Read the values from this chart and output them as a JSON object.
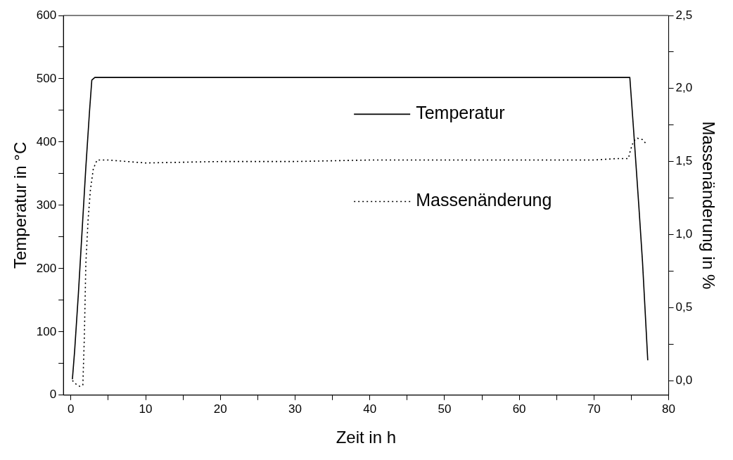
{
  "chart_data": {
    "type": "line",
    "xlabel": "Zeit in h",
    "ylabel": "Temperatur in °C",
    "y2label": "Massenänderung in %",
    "xlim": [
      -1,
      80
    ],
    "xticks": [
      0,
      {
        "value": 5,
        "label": null
      },
      10,
      {
        "value": 15,
        "label": null
      },
      20,
      {
        "value": 25,
        "label": null
      },
      30,
      {
        "value": 35,
        "label": null
      },
      40,
      {
        "value": 45,
        "label": null
      },
      50,
      {
        "value": 55,
        "label": null
      },
      60,
      {
        "value": 65,
        "label": null
      },
      70,
      {
        "value": 75,
        "label": null
      },
      80
    ],
    "ylim": [
      0,
      600
    ],
    "yticks": [
      0,
      {
        "value": 50,
        "label": null
      },
      100,
      {
        "value": 150,
        "label": null
      },
      200,
      {
        "value": 250,
        "label": null
      },
      300,
      {
        "value": 350,
        "label": null
      },
      400,
      {
        "value": 450,
        "label": null
      },
      500,
      {
        "value": 550,
        "label": null
      },
      600
    ],
    "y2lim": [
      -0.1,
      2.5
    ],
    "y2ticks": [
      {
        "value": 0,
        "label": "0,0"
      },
      {
        "value": 0.25,
        "label": null
      },
      {
        "value": 0.5,
        "label": "0,5"
      },
      {
        "value": 0.75,
        "label": null
      },
      {
        "value": 1,
        "label": "1,0"
      },
      {
        "value": 1.25,
        "label": null
      },
      {
        "value": 1.5,
        "label": "1,5"
      },
      {
        "value": 1.75,
        "label": null
      },
      {
        "value": 2,
        "label": "2,0"
      },
      {
        "value": 2.25,
        "label": null
      },
      {
        "value": 2.5,
        "label": "2,5"
      }
    ],
    "grid": false,
    "legend": "top right",
    "marker": "none",
    "series": [
      {
        "name": "Temperatur",
        "color": "#000000",
        "line_style": "solid",
        "x": [
          0.2,
          0.5,
          1,
          1.5,
          2,
          2.5,
          2.8,
          3.2,
          10,
          30,
          50,
          70,
          74.8,
          75.3,
          76,
          76.5,
          77,
          77.2
        ],
        "values": [
          25,
          70,
          160,
          260,
          360,
          450,
          498,
          502,
          502,
          502,
          502,
          502,
          502,
          420,
          300,
          210,
          100,
          55
        ]
      },
      {
        "name": "Massenänderung",
        "color": "#000000",
        "line_style": "dotted",
        "axis": "y2",
        "x": [
          0.2,
          0.8,
          1.2,
          1.6,
          1.8,
          2,
          2.3,
          2.6,
          3,
          3.5,
          5,
          10,
          20,
          30,
          40,
          50,
          60,
          70,
          73,
          74.6,
          74.9,
          75.3,
          75.8,
          76.5,
          77
        ],
        "values": [
          0.0,
          -0.03,
          -0.04,
          -0.03,
          0.3,
          0.8,
          1.1,
          1.3,
          1.45,
          1.51,
          1.51,
          1.49,
          1.5,
          1.5,
          1.51,
          1.51,
          1.51,
          1.51,
          1.52,
          1.52,
          1.58,
          1.64,
          1.66,
          1.65,
          1.62
        ]
      }
    ]
  }
}
